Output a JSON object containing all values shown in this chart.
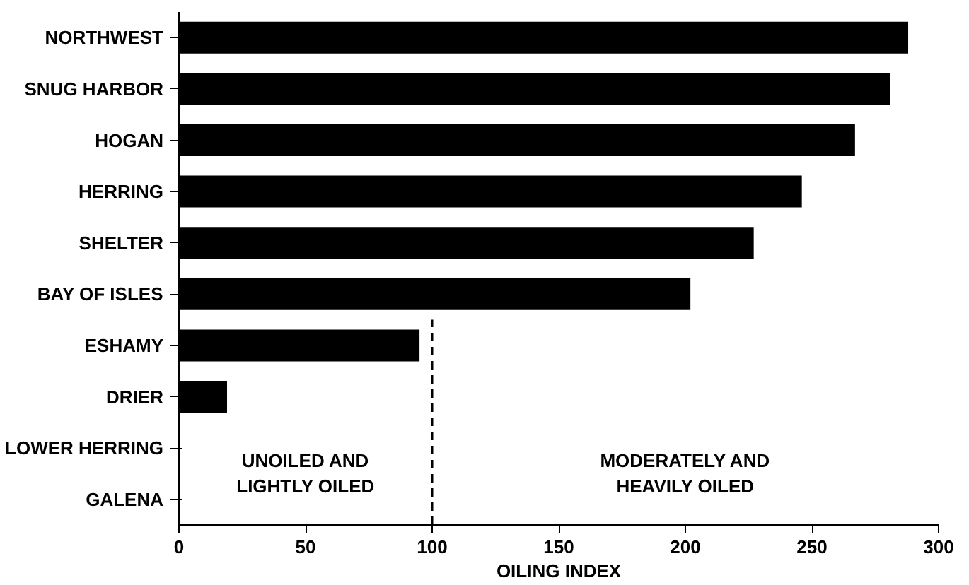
{
  "chart_data": {
    "type": "bar",
    "orientation": "horizontal",
    "xlabel": "OILING INDEX",
    "categories": [
      "NORTHWEST",
      "SNUG HARBOR",
      "HOGAN",
      "HERRING",
      "SHELTER",
      "BAY OF ISLES",
      "ESHAMY",
      "DRIER",
      "LOWER HERRING",
      "GALENA"
    ],
    "values": [
      288,
      281,
      267,
      246,
      227,
      202,
      95,
      19,
      0,
      0
    ],
    "color": "#000000",
    "xlim": [
      0,
      300
    ],
    "xticks": [
      0,
      50,
      100,
      150,
      200,
      250,
      300
    ],
    "ref_lines": [
      {
        "axis": "x",
        "value": 100,
        "label": null,
        "color": "#000000",
        "line_style": "dashed"
      }
    ],
    "annotations": [
      "UNOILED AND\nLIGHTLY OILED",
      "MODERATELY AND\nHEAVILY OILED"
    ],
    "grid": false
  }
}
